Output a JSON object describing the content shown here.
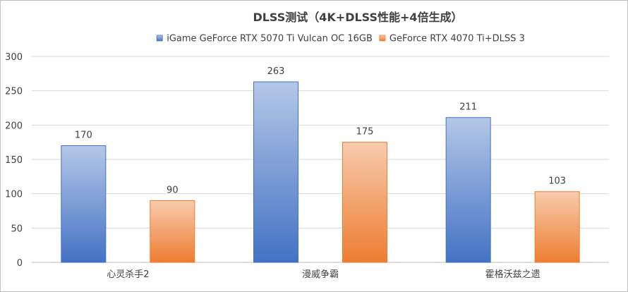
{
  "chart_data": {
    "type": "bar",
    "title": "DLSS测试（4K+DLSS性能+4倍生成）",
    "categories": [
      "心灵杀手2",
      "漫威争霸",
      "霍格沃兹之遗"
    ],
    "series": [
      {
        "name": "iGame GeForce RTX 5070 Ti Vulcan OC 16GB",
        "values": [
          170,
          263,
          211
        ],
        "color": "#4472c4",
        "color_light": "#b4c7e7"
      },
      {
        "name": "GeForce RTX 4070 Ti+DLSS 3",
        "values": [
          90,
          175,
          103
        ],
        "color": "#ed7d31",
        "color_light": "#f8cbad"
      }
    ],
    "ylim": [
      0,
      300
    ],
    "yticks": [
      "0",
      "50",
      "100",
      "150",
      "200",
      "250",
      "300"
    ],
    "grid": true,
    "legend_position": "top"
  }
}
